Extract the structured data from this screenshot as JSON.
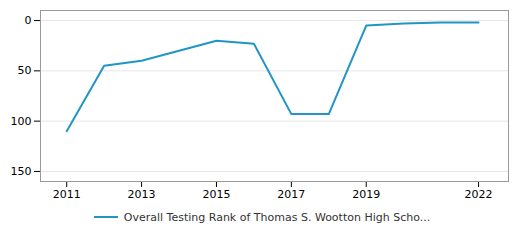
{
  "chart_data": {
    "type": "line",
    "x": [
      2011,
      2012,
      2013,
      2014,
      2015,
      2016,
      2017,
      2018,
      2019,
      2020,
      2021,
      2022
    ],
    "series": [
      {
        "name": "Overall Testing Rank of Thomas S. Wootton High Scho...",
        "color": "#2196c4",
        "values": [
          110,
          45,
          40,
          30,
          20,
          23,
          93,
          93,
          5,
          3,
          2,
          2
        ]
      }
    ],
    "xlim": [
      2010.3,
      2022.8
    ],
    "xticks": [
      2011,
      2013,
      2015,
      2017,
      2019,
      2022
    ],
    "ylim": [
      160,
      -10
    ],
    "yticks": [
      0,
      50,
      100,
      150
    ],
    "grid": true,
    "legend": "bottom"
  }
}
